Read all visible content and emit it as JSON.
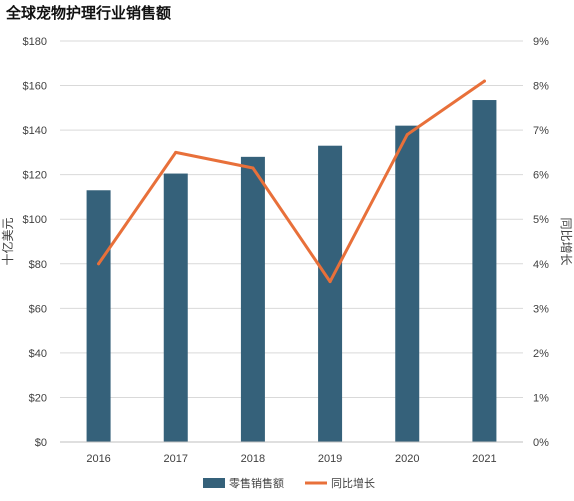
{
  "chart_data": {
    "type": "bar",
    "title": "全球宠物护理行业销售额",
    "categories": [
      "2016",
      "2017",
      "2018",
      "2019",
      "2020",
      "2021"
    ],
    "series": [
      {
        "name": "零售销售额",
        "type": "bar",
        "axis": "left",
        "color": "#35617a",
        "values": [
          113,
          120.5,
          128,
          133,
          142,
          153.5
        ]
      },
      {
        "name": "同比增长",
        "type": "line",
        "axis": "right",
        "color": "#e8703a",
        "values": [
          4.0,
          6.5,
          6.15,
          3.6,
          6.9,
          8.1
        ]
      }
    ],
    "ylabel": "十亿美元",
    "y2label": "同比增长",
    "ylim": [
      0,
      180
    ],
    "y2lim": [
      0,
      9
    ],
    "yticks": [
      "$0",
      "$20",
      "$40",
      "$60",
      "$80",
      "$100",
      "$120",
      "$140",
      "$160",
      "$180"
    ],
    "y2ticks": [
      "0%",
      "1%",
      "2%",
      "3%",
      "4%",
      "5%",
      "6%",
      "7%",
      "8%",
      "9%"
    ],
    "grid": true,
    "legend_position": "bottom"
  }
}
